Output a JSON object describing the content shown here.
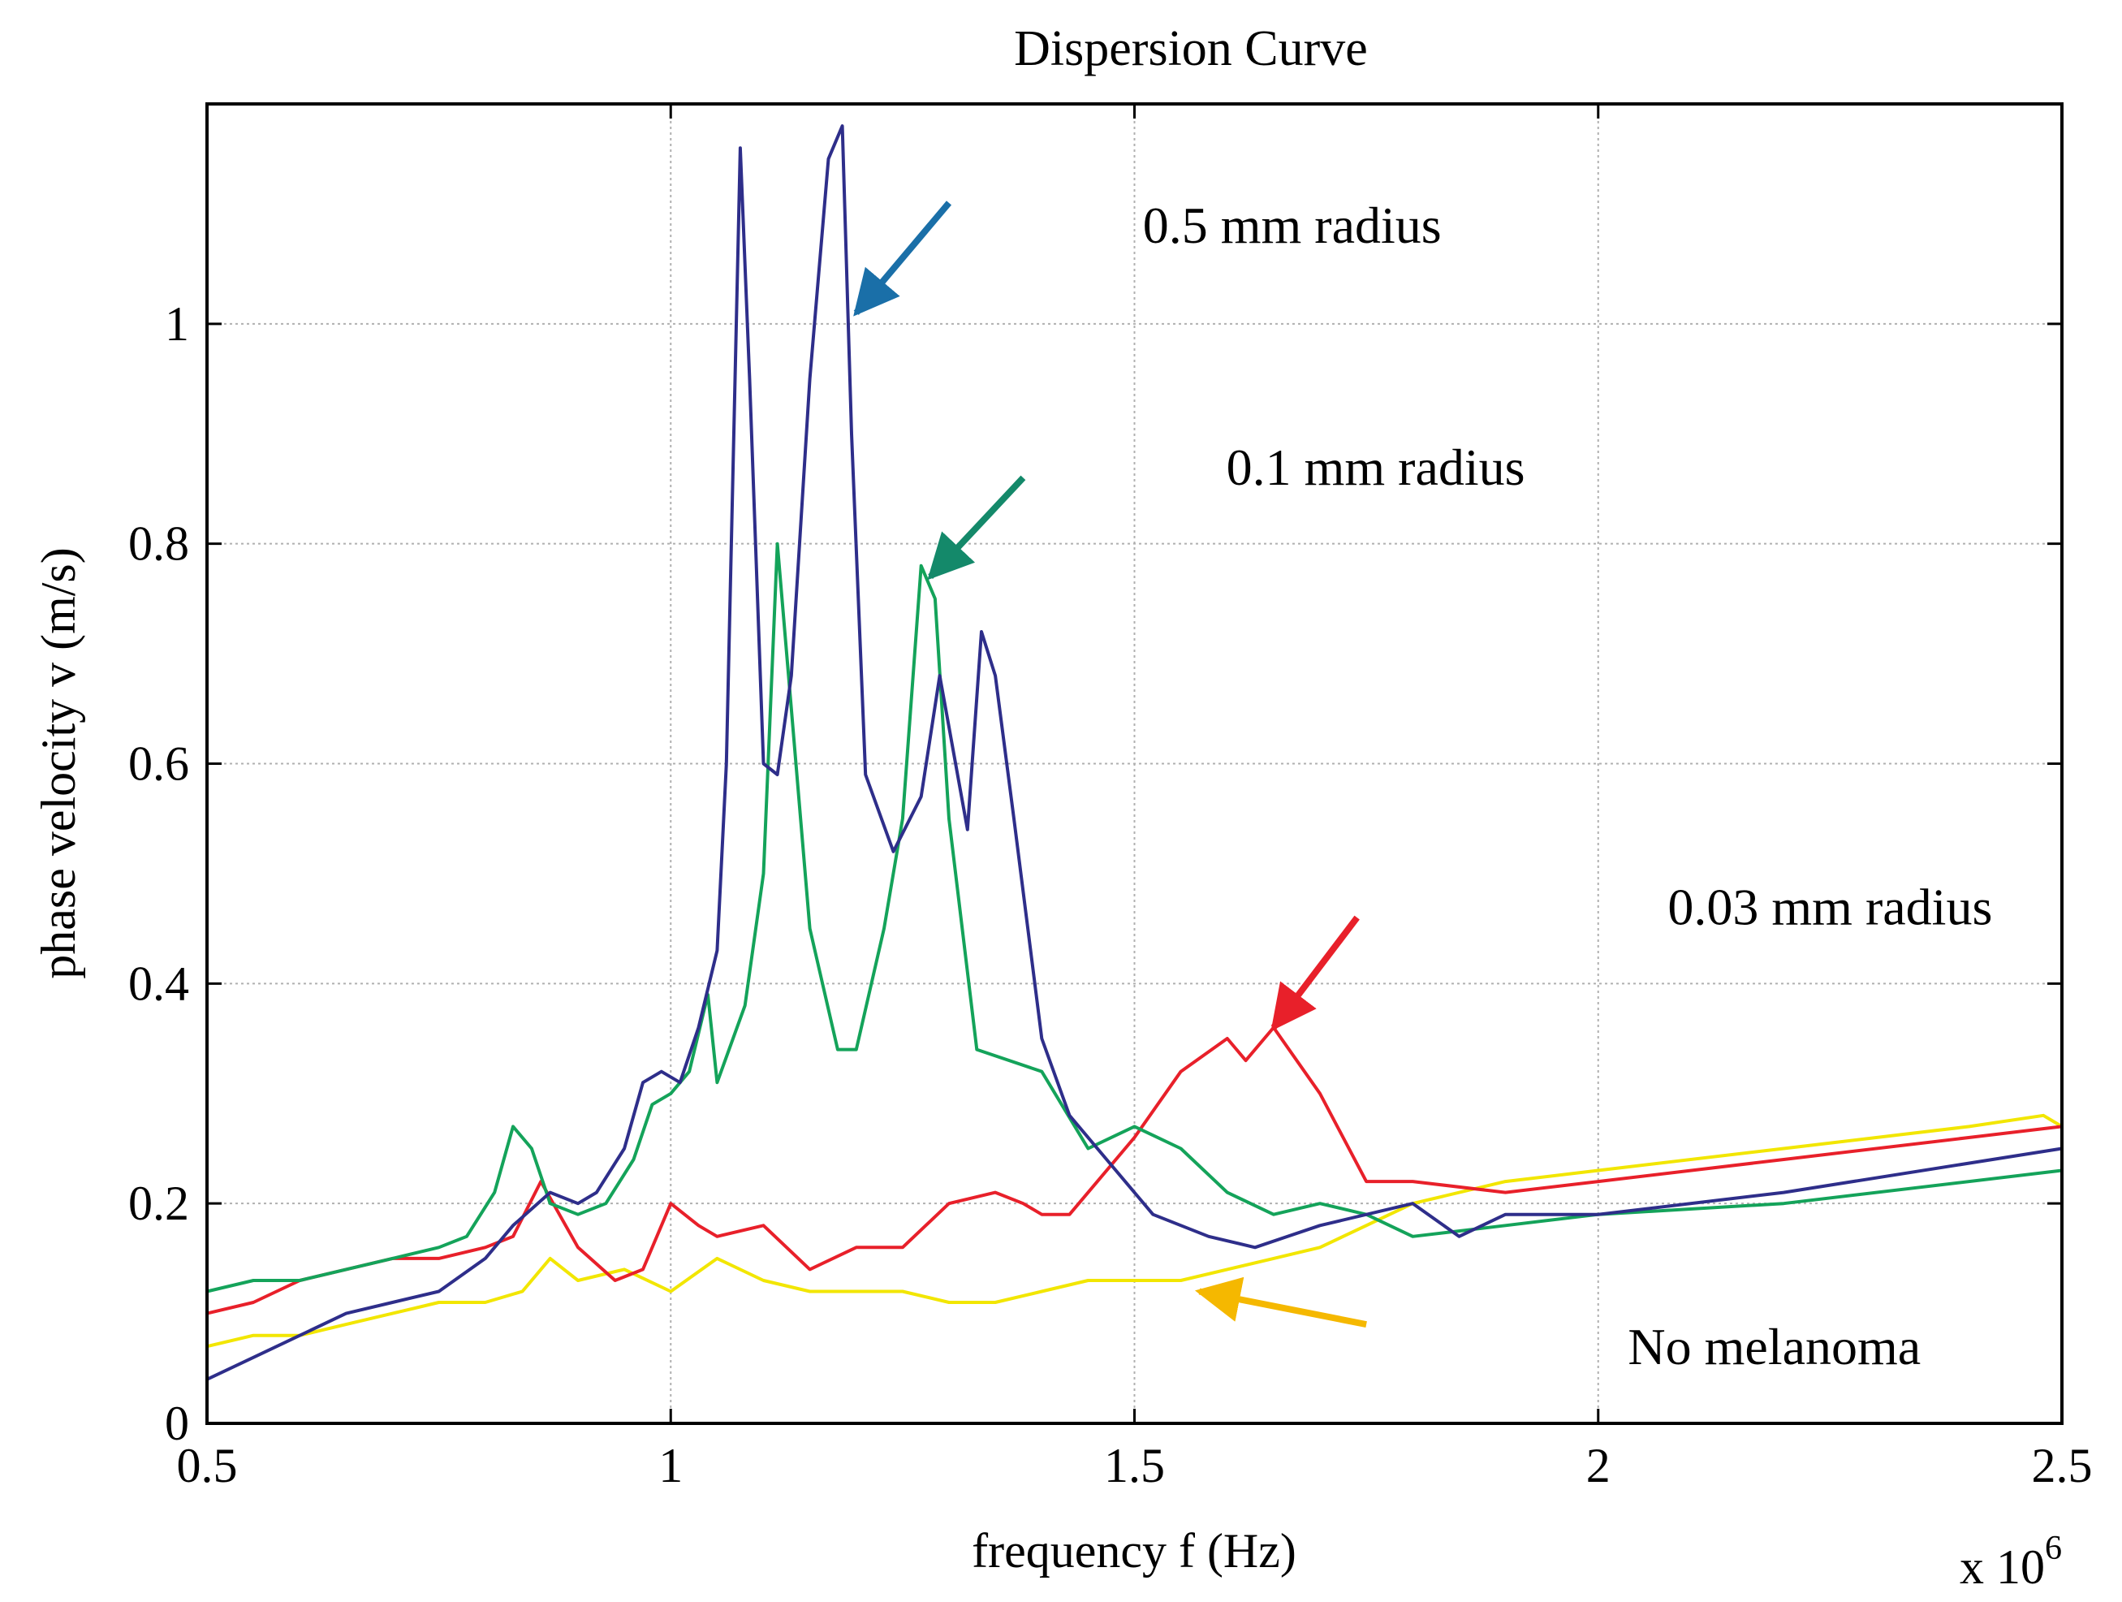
{
  "chart_data": {
    "type": "line",
    "title": "Dispersion Curve",
    "xlabel": "frequency f (Hz)",
    "ylabel": "phase velocity v (m/s)",
    "x_multiplier": "x 10",
    "x_exponent": "6",
    "xlim": [
      0.5,
      2.5
    ],
    "ylim": [
      0,
      1.2
    ],
    "xticks": [
      0.5,
      1,
      1.5,
      2,
      2.5
    ],
    "xtick_labels": [
      "0.5",
      "1",
      "1.5",
      "2",
      "2.5"
    ],
    "yticks": [
      0,
      0.2,
      0.4,
      0.6,
      0.8,
      1
    ],
    "ytick_labels": [
      "0",
      "0.2",
      "0.4",
      "0.6",
      "0.8",
      "1"
    ],
    "grid": true,
    "series": [
      {
        "name": "0.5 mm radius",
        "color": "#2e2e8a",
        "x": [
          0.5,
          0.55,
          0.6,
          0.65,
          0.7,
          0.75,
          0.8,
          0.83,
          0.87,
          0.9,
          0.92,
          0.95,
          0.97,
          0.99,
          1.01,
          1.03,
          1.05,
          1.06,
          1.075,
          1.085,
          1.1,
          1.115,
          1.13,
          1.15,
          1.17,
          1.185,
          1.195,
          1.21,
          1.24,
          1.27,
          1.29,
          1.32,
          1.335,
          1.35,
          1.37,
          1.4,
          1.43,
          1.47,
          1.52,
          1.58,
          1.63,
          1.7,
          1.8,
          1.85,
          1.9,
          2.0,
          2.2,
          2.5
        ],
        "y": [
          0.04,
          0.06,
          0.08,
          0.1,
          0.11,
          0.12,
          0.15,
          0.18,
          0.21,
          0.2,
          0.21,
          0.25,
          0.31,
          0.32,
          0.31,
          0.36,
          0.43,
          0.6,
          1.16,
          0.95,
          0.6,
          0.59,
          0.68,
          0.95,
          1.15,
          1.18,
          0.9,
          0.59,
          0.52,
          0.57,
          0.68,
          0.54,
          0.72,
          0.68,
          0.55,
          0.35,
          0.28,
          0.24,
          0.19,
          0.17,
          0.16,
          0.18,
          0.2,
          0.17,
          0.19,
          0.19,
          0.21,
          0.25
        ]
      },
      {
        "name": "0.1 mm radius",
        "color": "#14a35a",
        "x": [
          0.5,
          0.55,
          0.6,
          0.65,
          0.7,
          0.75,
          0.78,
          0.81,
          0.83,
          0.85,
          0.87,
          0.9,
          0.93,
          0.96,
          0.98,
          1.0,
          1.02,
          1.04,
          1.05,
          1.08,
          1.1,
          1.115,
          1.13,
          1.15,
          1.18,
          1.2,
          1.23,
          1.25,
          1.27,
          1.285,
          1.3,
          1.33,
          1.4,
          1.45,
          1.5,
          1.55,
          1.6,
          1.65,
          1.7,
          1.75,
          1.8,
          1.9,
          2.0,
          2.2,
          2.5
        ],
        "y": [
          0.12,
          0.13,
          0.13,
          0.14,
          0.15,
          0.16,
          0.17,
          0.21,
          0.27,
          0.25,
          0.2,
          0.19,
          0.2,
          0.24,
          0.29,
          0.3,
          0.32,
          0.39,
          0.31,
          0.38,
          0.5,
          0.8,
          0.65,
          0.45,
          0.34,
          0.34,
          0.45,
          0.55,
          0.78,
          0.75,
          0.55,
          0.34,
          0.32,
          0.25,
          0.27,
          0.25,
          0.21,
          0.19,
          0.2,
          0.19,
          0.17,
          0.18,
          0.19,
          0.2,
          0.23
        ]
      },
      {
        "name": "0.03 mm radius",
        "color": "#e8202a",
        "x": [
          0.5,
          0.55,
          0.6,
          0.65,
          0.7,
          0.75,
          0.8,
          0.83,
          0.86,
          0.88,
          0.9,
          0.94,
          0.97,
          1.0,
          1.03,
          1.05,
          1.1,
          1.15,
          1.2,
          1.25,
          1.3,
          1.35,
          1.38,
          1.4,
          1.43,
          1.46,
          1.5,
          1.55,
          1.6,
          1.62,
          1.65,
          1.7,
          1.75,
          1.8,
          1.9,
          2.0,
          2.2,
          2.5
        ],
        "y": [
          0.1,
          0.11,
          0.13,
          0.14,
          0.15,
          0.15,
          0.16,
          0.17,
          0.22,
          0.19,
          0.16,
          0.13,
          0.14,
          0.2,
          0.18,
          0.17,
          0.18,
          0.14,
          0.16,
          0.16,
          0.2,
          0.21,
          0.2,
          0.19,
          0.19,
          0.22,
          0.26,
          0.32,
          0.35,
          0.33,
          0.36,
          0.3,
          0.22,
          0.22,
          0.21,
          0.22,
          0.24,
          0.27
        ]
      },
      {
        "name": "No melanoma",
        "color": "#f2e600",
        "x": [
          0.5,
          0.55,
          0.6,
          0.65,
          0.7,
          0.75,
          0.8,
          0.84,
          0.87,
          0.9,
          0.95,
          1.0,
          1.05,
          1.1,
          1.15,
          1.2,
          1.25,
          1.3,
          1.35,
          1.4,
          1.45,
          1.5,
          1.55,
          1.6,
          1.65,
          1.7,
          1.75,
          1.8,
          1.9,
          2.0,
          2.2,
          2.4,
          2.48,
          2.5
        ],
        "y": [
          0.07,
          0.08,
          0.08,
          0.09,
          0.1,
          0.11,
          0.11,
          0.12,
          0.15,
          0.13,
          0.14,
          0.12,
          0.15,
          0.13,
          0.12,
          0.12,
          0.12,
          0.11,
          0.11,
          0.12,
          0.13,
          0.13,
          0.13,
          0.14,
          0.15,
          0.16,
          0.18,
          0.2,
          0.22,
          0.23,
          0.25,
          0.27,
          0.28,
          0.27
        ]
      }
    ],
    "annotations": [
      {
        "text": "0.5 mm radius",
        "color": "#1a6fa8",
        "text_at": [
          1.67,
          1.09
        ],
        "arrow_from": [
          1.3,
          1.11
        ],
        "arrow_to": [
          1.2,
          1.01
        ]
      },
      {
        "text": "0.1 mm radius",
        "color": "#14896a",
        "text_at": [
          1.76,
          0.87
        ],
        "arrow_from": [
          1.38,
          0.86
        ],
        "arrow_to": [
          1.28,
          0.77
        ]
      },
      {
        "text": "0.03 mm radius",
        "color": "#e8202a",
        "text_at": [
          2.25,
          0.47
        ],
        "arrow_from": [
          1.74,
          0.46
        ],
        "arrow_to": [
          1.65,
          0.36
        ]
      },
      {
        "text": "No melanoma",
        "color": "#f5b800",
        "text_at": [
          2.19,
          0.07
        ],
        "arrow_from": [
          1.75,
          0.09
        ],
        "arrow_to": [
          1.57,
          0.12
        ]
      }
    ]
  }
}
